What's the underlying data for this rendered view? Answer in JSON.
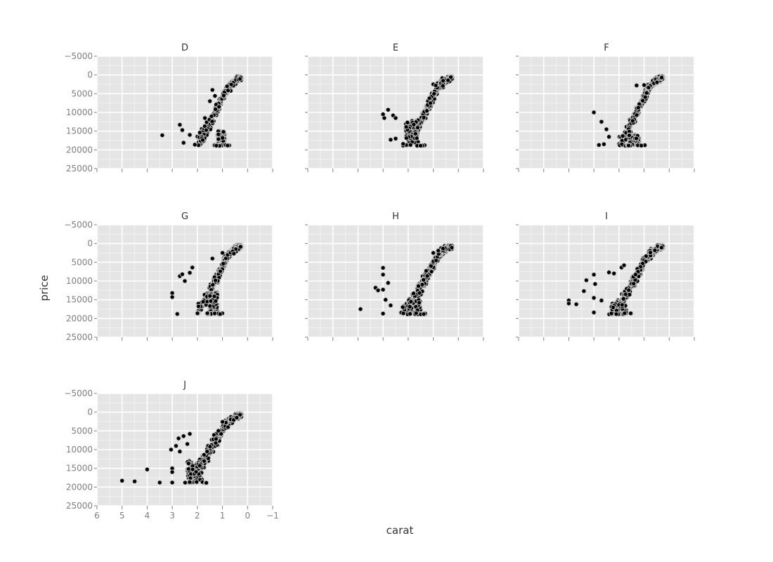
{
  "chart_data": {
    "type": "scatter",
    "xlabel": "carat",
    "ylabel": "price",
    "x_axis_reversed": true,
    "y_axis_reversed": true,
    "xlim": [
      6,
      -1
    ],
    "ylim": [
      -5000,
      25000
    ],
    "x_ticks": [
      6,
      5,
      4,
      3,
      2,
      1,
      0,
      -1
    ],
    "x_tick_labels": [
      "6",
      "5",
      "4",
      "3",
      "2",
      "1",
      "0",
      "−1"
    ],
    "y_ticks": [
      -5000,
      0,
      5000,
      10000,
      15000,
      20000,
      25000
    ],
    "y_tick_labels": [
      "−5000",
      "0",
      "5000",
      "10000",
      "15000",
      "20000",
      "25000"
    ],
    "grid": true,
    "colors": {
      "panel_bg": "#e5e5e5",
      "grid": "#ffffff",
      "point_fill": "#000000",
      "point_edge": "#c8c8c8",
      "tick": "#7f7f7f"
    },
    "facets": [
      {
        "name": "D",
        "outliers": [
          [
            3.4,
            16100
          ],
          [
            2.7,
            13300
          ],
          [
            2.6,
            14700
          ],
          [
            2.55,
            18100
          ],
          [
            2.3,
            16000
          ],
          [
            2.1,
            18600
          ],
          [
            1.9,
            15400
          ],
          [
            1.7,
            11500
          ],
          [
            1.5,
            7000
          ],
          [
            1.4,
            4000
          ],
          [
            1.3,
            5600
          ]
        ],
        "trend": [
          [
            0.3,
            800
          ],
          [
            0.5,
            1700
          ],
          [
            0.8,
            3500
          ],
          [
            1.0,
            6000
          ],
          [
            1.2,
            9000
          ],
          [
            1.5,
            13000
          ],
          [
            1.8,
            16500
          ],
          [
            2.0,
            18300
          ]
        ],
        "low_band": [
          0.9,
          1.2,
          15000,
          18700
        ]
      },
      {
        "name": "E",
        "outliers": [
          [
            3.0,
            10500
          ],
          [
            2.95,
            11500
          ],
          [
            2.7,
            17300
          ],
          [
            2.5,
            17000
          ],
          [
            2.8,
            9300
          ],
          [
            2.6,
            10800
          ],
          [
            2.5,
            11500
          ],
          [
            2.2,
            18400
          ],
          [
            1.0,
            2500
          ],
          [
            0.9,
            2800
          ],
          [
            0.3,
            600
          ]
        ],
        "trend": [
          [
            0.3,
            700
          ],
          [
            0.5,
            1500
          ],
          [
            0.8,
            3000
          ],
          [
            1.0,
            5500
          ],
          [
            1.2,
            8500
          ],
          [
            1.5,
            12500
          ],
          [
            1.8,
            16000
          ],
          [
            2.0,
            18400
          ]
        ],
        "low_band": [
          1.6,
          2.1,
          12000,
          18500
        ]
      },
      {
        "name": "F",
        "outliers": [
          [
            3.0,
            10000
          ],
          [
            2.7,
            12500
          ],
          [
            2.8,
            18700
          ],
          [
            2.6,
            18500
          ],
          [
            2.4,
            16500
          ],
          [
            2.5,
            14500
          ],
          [
            1.3,
            2800
          ],
          [
            1.0,
            2700
          ],
          [
            0.3,
            700
          ]
        ],
        "trend": [
          [
            0.3,
            700
          ],
          [
            0.5,
            1500
          ],
          [
            0.8,
            3300
          ],
          [
            1.0,
            6000
          ],
          [
            1.2,
            9000
          ],
          [
            1.5,
            13000
          ],
          [
            1.8,
            16800
          ],
          [
            2.0,
            18600
          ]
        ],
        "low_band": [
          1.2,
          1.6,
          16000,
          18700
        ]
      },
      {
        "name": "G",
        "outliers": [
          [
            3.0,
            13200
          ],
          [
            3.0,
            14300
          ],
          [
            2.8,
            18800
          ],
          [
            2.7,
            8700
          ],
          [
            2.6,
            8200
          ],
          [
            2.5,
            10000
          ],
          [
            2.3,
            7800
          ],
          [
            2.2,
            6400
          ],
          [
            1.6,
            18600
          ],
          [
            1.4,
            4000
          ],
          [
            1.0,
            2500
          ]
        ],
        "trend": [
          [
            0.3,
            700
          ],
          [
            0.5,
            1500
          ],
          [
            0.8,
            3300
          ],
          [
            1.0,
            6000
          ],
          [
            1.2,
            9000
          ],
          [
            1.5,
            13000
          ],
          [
            1.8,
            16500
          ],
          [
            2.0,
            18500
          ]
        ],
        "low_band": [
          1.2,
          1.5,
          13000,
          18500
        ]
      },
      {
        "name": "H",
        "outliers": [
          [
            3.9,
            17500
          ],
          [
            3.3,
            11800
          ],
          [
            3.2,
            12500
          ],
          [
            3.0,
            12300
          ],
          [
            3.0,
            6500
          ],
          [
            3.0,
            8300
          ],
          [
            2.8,
            10500
          ],
          [
            3.0,
            18700
          ],
          [
            2.9,
            15000
          ],
          [
            2.7,
            16500
          ],
          [
            1.0,
            2500
          ],
          [
            0.8,
            1900
          ]
        ],
        "trend": [
          [
            0.3,
            700
          ],
          [
            0.5,
            1500
          ],
          [
            0.8,
            3300
          ],
          [
            1.0,
            5500
          ],
          [
            1.2,
            8000
          ],
          [
            1.5,
            11500
          ],
          [
            1.8,
            15000
          ],
          [
            2.0,
            17500
          ],
          [
            2.3,
            18800
          ]
        ],
        "low_band": [
          1.5,
          2.0,
          15000,
          18600
        ]
      },
      {
        "name": "I",
        "outliers": [
          [
            4.0,
            15200
          ],
          [
            4.0,
            16000
          ],
          [
            3.7,
            16200
          ],
          [
            3.4,
            12700
          ],
          [
            3.3,
            9800
          ],
          [
            3.0,
            8300
          ],
          [
            2.95,
            10800
          ],
          [
            3.0,
            14500
          ],
          [
            3.0,
            18400
          ],
          [
            2.7,
            15200
          ],
          [
            2.4,
            7700
          ],
          [
            2.2,
            8000
          ],
          [
            1.9,
            6400
          ],
          [
            1.8,
            5800
          ]
        ],
        "trend": [
          [
            0.3,
            700
          ],
          [
            0.5,
            1500
          ],
          [
            0.8,
            3000
          ],
          [
            1.0,
            5000
          ],
          [
            1.2,
            7500
          ],
          [
            1.5,
            11000
          ],
          [
            1.8,
            14500
          ],
          [
            2.0,
            17000
          ],
          [
            2.3,
            18800
          ]
        ],
        "low_band": [
          1.7,
          2.3,
          16000,
          18800
        ]
      },
      {
        "name": "J",
        "outliers": [
          [
            5.0,
            18300
          ],
          [
            4.5,
            18500
          ],
          [
            4.0,
            15300
          ],
          [
            3.5,
            18800
          ],
          [
            3.0,
            18800
          ],
          [
            3.0,
            15000
          ],
          [
            3.0,
            16000
          ],
          [
            3.05,
            10000
          ],
          [
            2.85,
            9000
          ],
          [
            2.7,
            10500
          ],
          [
            2.75,
            7000
          ],
          [
            2.55,
            6400
          ],
          [
            2.3,
            5800
          ],
          [
            2.4,
            8500
          ],
          [
            1.0,
            2600
          ],
          [
            0.3,
            700
          ]
        ],
        "trend": [
          [
            0.3,
            700
          ],
          [
            0.5,
            1500
          ],
          [
            0.8,
            2900
          ],
          [
            1.0,
            4800
          ],
          [
            1.2,
            7000
          ],
          [
            1.5,
            10000
          ],
          [
            1.8,
            13500
          ],
          [
            2.0,
            16000
          ],
          [
            2.3,
            18600
          ]
        ],
        "low_band": [
          1.8,
          2.4,
          13000,
          18600
        ]
      }
    ]
  }
}
